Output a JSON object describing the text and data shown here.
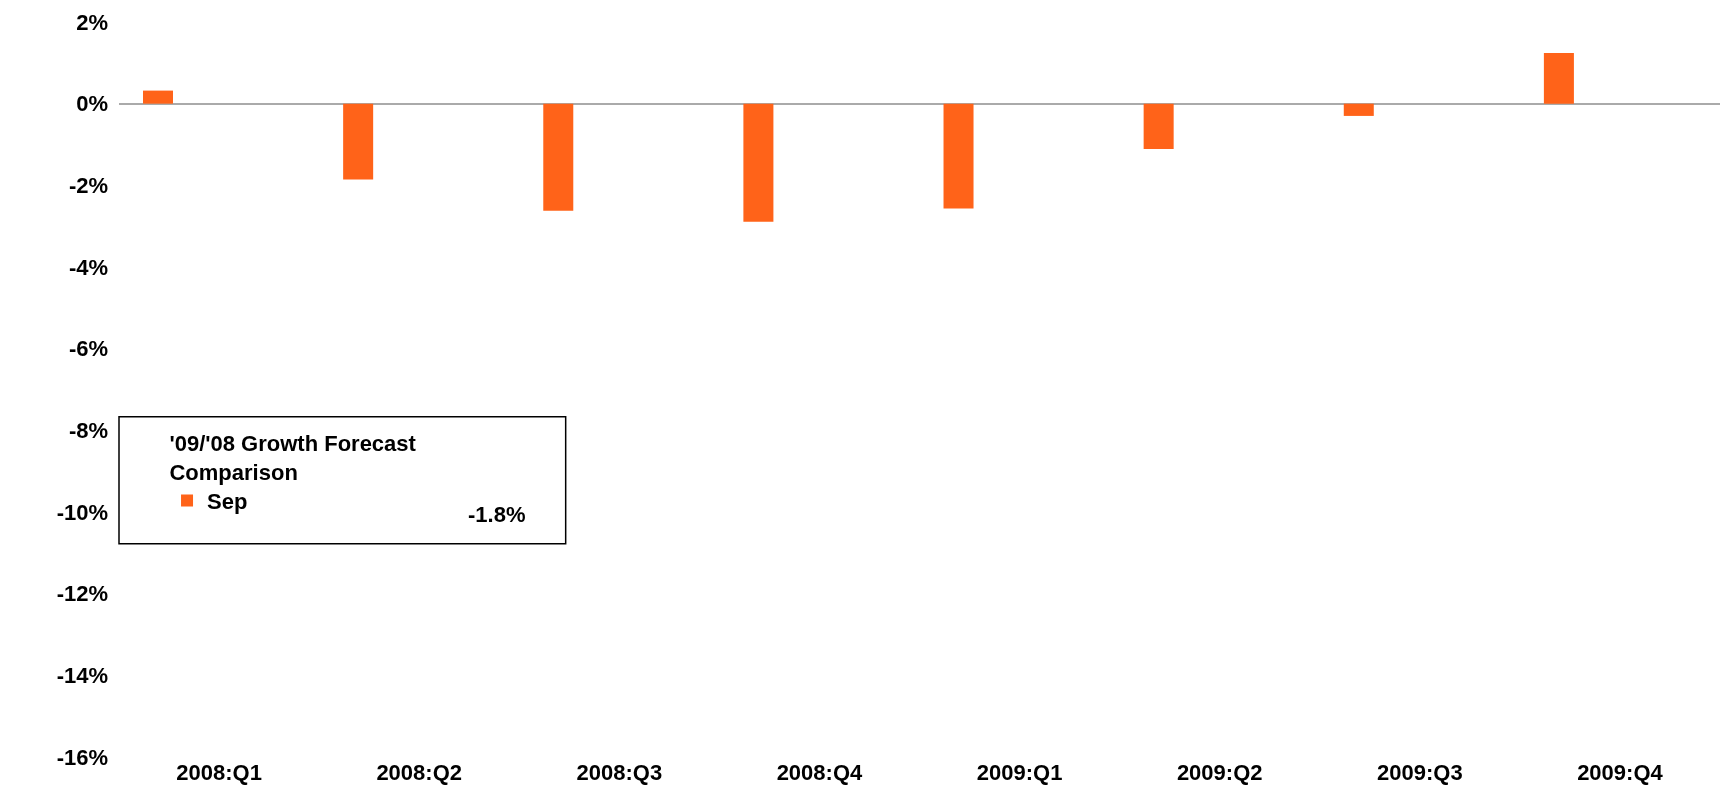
{
  "chart_data": {
    "type": "bar",
    "categories": [
      "2008:Q1",
      "2008:Q2",
      "2008:Q3",
      "2008:Q4",
      "2009:Q1",
      "2009:Q2",
      "2009:Q3",
      "2009:Q4"
    ],
    "series": [
      {
        "name": "Sep",
        "color": "#ff6319",
        "values": [
          0.32,
          -1.86,
          -2.62,
          -2.89,
          -2.57,
          -1.11,
          -0.3,
          1.24
        ]
      }
    ],
    "ylim": [
      -16,
      2
    ],
    "yticks": [
      {
        "value": -16,
        "label": "-16%"
      },
      {
        "value": -14,
        "label": "-14%"
      },
      {
        "value": -12,
        "label": "-12%"
      },
      {
        "value": -10,
        "label": "-10%"
      },
      {
        "value": -8,
        "label": "-8%"
      },
      {
        "value": -6,
        "label": "-6%"
      },
      {
        "value": -4,
        "label": "-4%"
      },
      {
        "value": -2,
        "label": "-2%"
      },
      {
        "value": 0,
        "label": "0%"
      },
      {
        "value": 2,
        "label": "2%"
      }
    ],
    "legend_title": "'09/'08 Growth Forecast Comparison",
    "legend": "bottom left",
    "annotations": [
      "-1.8%"
    ]
  }
}
